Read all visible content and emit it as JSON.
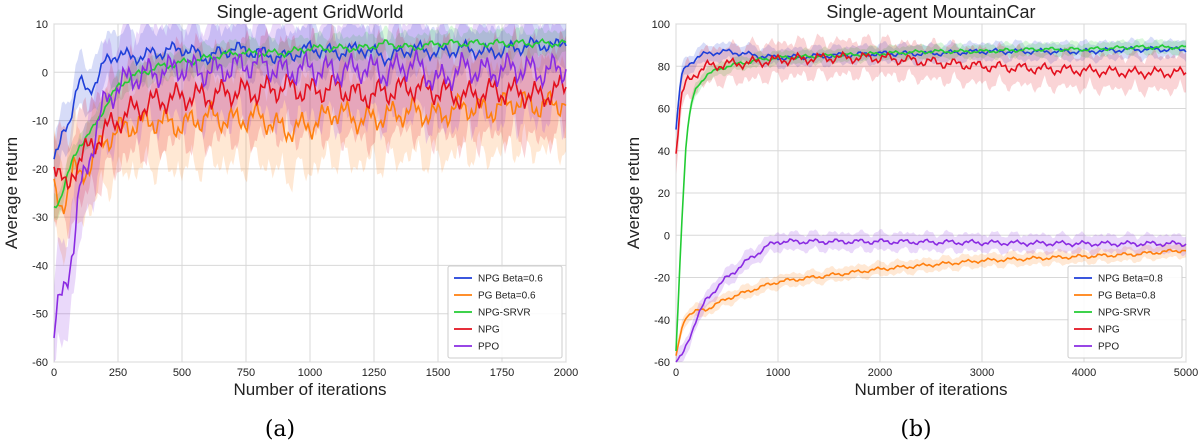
{
  "figure": {
    "captions": [
      "(a)",
      "(b)"
    ]
  },
  "chart_data": [
    {
      "type": "line",
      "title": "Single-agent GridWorld",
      "xlabel": "Number of iterations",
      "ylabel": "Average return",
      "xlim": [
        0,
        2000
      ],
      "ylim": [
        -60,
        10
      ],
      "xticks": [
        0,
        250,
        500,
        750,
        1000,
        1250,
        1500,
        1750,
        2000
      ],
      "yticks": [
        -60,
        -50,
        -40,
        -30,
        -20,
        -10,
        0,
        10
      ],
      "grid": true,
      "legend_position": "bottom-right",
      "series": [
        {
          "name": "NPG Beta=0.6",
          "color": "#1f3fd9",
          "x": [
            0,
            20,
            40,
            60,
            80,
            100,
            130,
            160,
            200,
            250,
            300,
            400,
            500,
            600,
            700,
            800,
            900,
            1000,
            1100,
            1200,
            1300,
            1400,
            1500,
            1600,
            1700,
            1800,
            1900,
            1950,
            2000
          ],
          "y": [
            -18,
            -16,
            -12,
            -10,
            -5,
            -2,
            -4,
            -2,
            2,
            4,
            3,
            4,
            5,
            3,
            5,
            4,
            3,
            5,
            4,
            5,
            3,
            5,
            4,
            5,
            4,
            5,
            6,
            5,
            7
          ],
          "band": 5
        },
        {
          "name": "PG Beta=0.6",
          "color": "#ff7f0e",
          "x": [
            0,
            25,
            50,
            75,
            100,
            150,
            200,
            250,
            300,
            400,
            500,
            600,
            700,
            800,
            900,
            1000,
            1100,
            1200,
            1300,
            1400,
            1500,
            1600,
            1700,
            1800,
            1900,
            2000
          ],
          "y": [
            -25,
            -28,
            -25,
            -20,
            -22,
            -18,
            -14,
            -12,
            -11,
            -10,
            -11,
            -9,
            -10,
            -9,
            -12,
            -11,
            -8,
            -10,
            -9,
            -8,
            -9,
            -7,
            -8,
            -6,
            -7,
            -6
          ],
          "band": 9
        },
        {
          "name": "NPG-SRVR",
          "color": "#22cc33",
          "x": [
            0,
            25,
            50,
            75,
            100,
            150,
            200,
            250,
            300,
            400,
            500,
            600,
            700,
            800,
            900,
            1000,
            1100,
            1200,
            1300,
            1400,
            1500,
            1600,
            1700,
            1800,
            1900,
            2000
          ],
          "y": [
            -28,
            -26,
            -22,
            -18,
            -15,
            -12,
            -7,
            -3,
            -1,
            1,
            2,
            3,
            4,
            4,
            4,
            5,
            5,
            5,
            6,
            5,
            6,
            6,
            6,
            6,
            6,
            6
          ],
          "band": 2.5
        },
        {
          "name": "NPG",
          "color": "#e3101e",
          "x": [
            0,
            25,
            50,
            75,
            100,
            150,
            200,
            250,
            300,
            400,
            500,
            600,
            700,
            800,
            900,
            1000,
            1100,
            1200,
            1300,
            1400,
            1500,
            1600,
            1700,
            1800,
            1900,
            2000
          ],
          "y": [
            -18,
            -22,
            -25,
            -20,
            -18,
            -15,
            -12,
            -10,
            -8,
            -6,
            -5,
            -5,
            -4,
            -4,
            -3,
            -4,
            -3,
            -5,
            -4,
            -3,
            -4,
            -5,
            -4,
            -4,
            -5,
            -3
          ],
          "band": 9
        },
        {
          "name": "PPO",
          "color": "#8a2be2",
          "x": [
            0,
            20,
            40,
            60,
            80,
            100,
            150,
            200,
            250,
            300,
            400,
            500,
            600,
            700,
            800,
            900,
            1000,
            1100,
            1200,
            1300,
            1400,
            1500,
            1600,
            1700,
            1800,
            1900,
            2000
          ],
          "y": [
            -55,
            -48,
            -44,
            -40,
            -35,
            -25,
            -15,
            -6,
            -3,
            -1,
            0,
            1,
            0,
            1,
            2,
            0,
            1,
            0,
            1,
            0,
            2,
            -2,
            1,
            0,
            1,
            0,
            1
          ],
          "band": 10
        }
      ]
    },
    {
      "type": "line",
      "title": "Single-agent MountainCar",
      "xlabel": "Number of iterations",
      "ylabel": "Average return",
      "xlim": [
        0,
        5000
      ],
      "ylim": [
        -60,
        100
      ],
      "xticks": [
        0,
        1000,
        2000,
        3000,
        4000,
        5000
      ],
      "yticks": [
        -60,
        -40,
        -20,
        0,
        20,
        40,
        60,
        80,
        100
      ],
      "grid": true,
      "legend_position": "bottom-right",
      "series": [
        {
          "name": "NPG Beta=0.8",
          "color": "#1f3fd9",
          "x": [
            0,
            50,
            100,
            200,
            300,
            500,
            800,
            1000,
            1500,
            2000,
            2500,
            3000,
            3500,
            4000,
            4500,
            5000
          ],
          "y": [
            50,
            75,
            80,
            84,
            86,
            87,
            85,
            84,
            85,
            86,
            86,
            87,
            87,
            87,
            88,
            88
          ],
          "band": 4
        },
        {
          "name": "PG Beta=0.8",
          "color": "#ff7f0e",
          "x": [
            0,
            50,
            100,
            200,
            300,
            500,
            800,
            1000,
            1500,
            2000,
            2500,
            3000,
            3500,
            4000,
            4500,
            5000
          ],
          "y": [
            -58,
            -45,
            -38,
            -36,
            -35,
            -30,
            -25,
            -22,
            -19,
            -16,
            -14,
            -12,
            -11,
            -10,
            -9,
            -7
          ],
          "band": 3
        },
        {
          "name": "NPG-SRVR",
          "color": "#22cc33",
          "x": [
            0,
            50,
            100,
            150,
            200,
            300,
            500,
            800,
            1000,
            1500,
            2000,
            2500,
            3000,
            3500,
            4000,
            4500,
            5000
          ],
          "y": [
            -55,
            0,
            45,
            62,
            70,
            76,
            80,
            83,
            84,
            85,
            86,
            87,
            87,
            88,
            88,
            89,
            89
          ],
          "band": 3
        },
        {
          "name": "NPG",
          "color": "#e3101e",
          "x": [
            0,
            50,
            100,
            200,
            300,
            500,
            800,
            1000,
            1500,
            2000,
            2500,
            3000,
            3500,
            4000,
            4500,
            5000
          ],
          "y": [
            40,
            65,
            72,
            77,
            80,
            81,
            82,
            83,
            84,
            84,
            82,
            80,
            79,
            78,
            77,
            77
          ],
          "band": 8
        },
        {
          "name": "PPO",
          "color": "#8a2be2",
          "x": [
            0,
            50,
            100,
            200,
            300,
            500,
            700,
            900,
            1000,
            1200,
            1500,
            2000,
            3000,
            4000,
            5000
          ],
          "y": [
            -60,
            -58,
            -52,
            -40,
            -30,
            -20,
            -12,
            -5,
            -3,
            -3,
            -3,
            -3,
            -3.5,
            -4,
            -4
          ],
          "band": 4
        }
      ]
    }
  ]
}
